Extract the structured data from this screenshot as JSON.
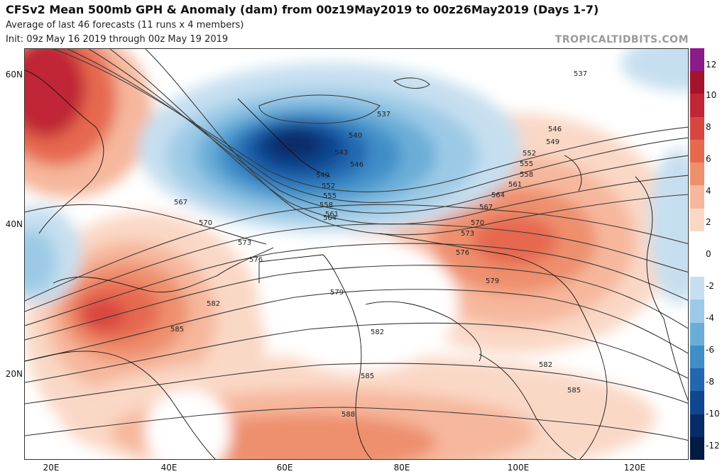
{
  "header": {
    "title": "CFSv2 Mean 500mb GPH & Anomaly (dam) from 00z19May2019 to 00z26May2019 (Days 1-7)",
    "subtitle1": "Average of last 46 forecasts (11 runs x 4 members)",
    "subtitle2": "Init: 09z May 16 2019 through 00z May 19 2019",
    "brand": "TROPICALTIDBITS.COM"
  },
  "lat_labels": [
    "60N",
    "40N",
    "20N"
  ],
  "lon_labels": [
    "20E",
    "40E",
    "60E",
    "80E",
    "100E",
    "120E"
  ],
  "colorbar": {
    "ticks": [
      "12",
      "10",
      "8",
      "6",
      "4",
      "2",
      "0",
      "-2",
      "-4",
      "-6",
      "-8",
      "-10",
      "-12"
    ],
    "colors": [
      "#8b1a8b",
      "#a3142b",
      "#c02634",
      "#d8473f",
      "#e6694f",
      "#ee8f6d",
      "#f6b79c",
      "#fad8c6",
      "#ffffff",
      "#ffffff",
      "#c6dff0",
      "#9ccae6",
      "#6aaed8",
      "#3f8ec8",
      "#2367b0",
      "#10458f",
      "#072b66",
      "#031a42"
    ]
  },
  "contour_labels": [
    "537",
    "537",
    "540",
    "543",
    "546",
    "546",
    "549",
    "549",
    "552",
    "552",
    "555",
    "555",
    "558",
    "558",
    "561",
    "561",
    "564",
    "564",
    "567",
    "567",
    "570",
    "570",
    "573",
    "573",
    "576",
    "576",
    "579",
    "579",
    "582",
    "582",
    "582",
    "585",
    "585",
    "585",
    "588"
  ]
}
